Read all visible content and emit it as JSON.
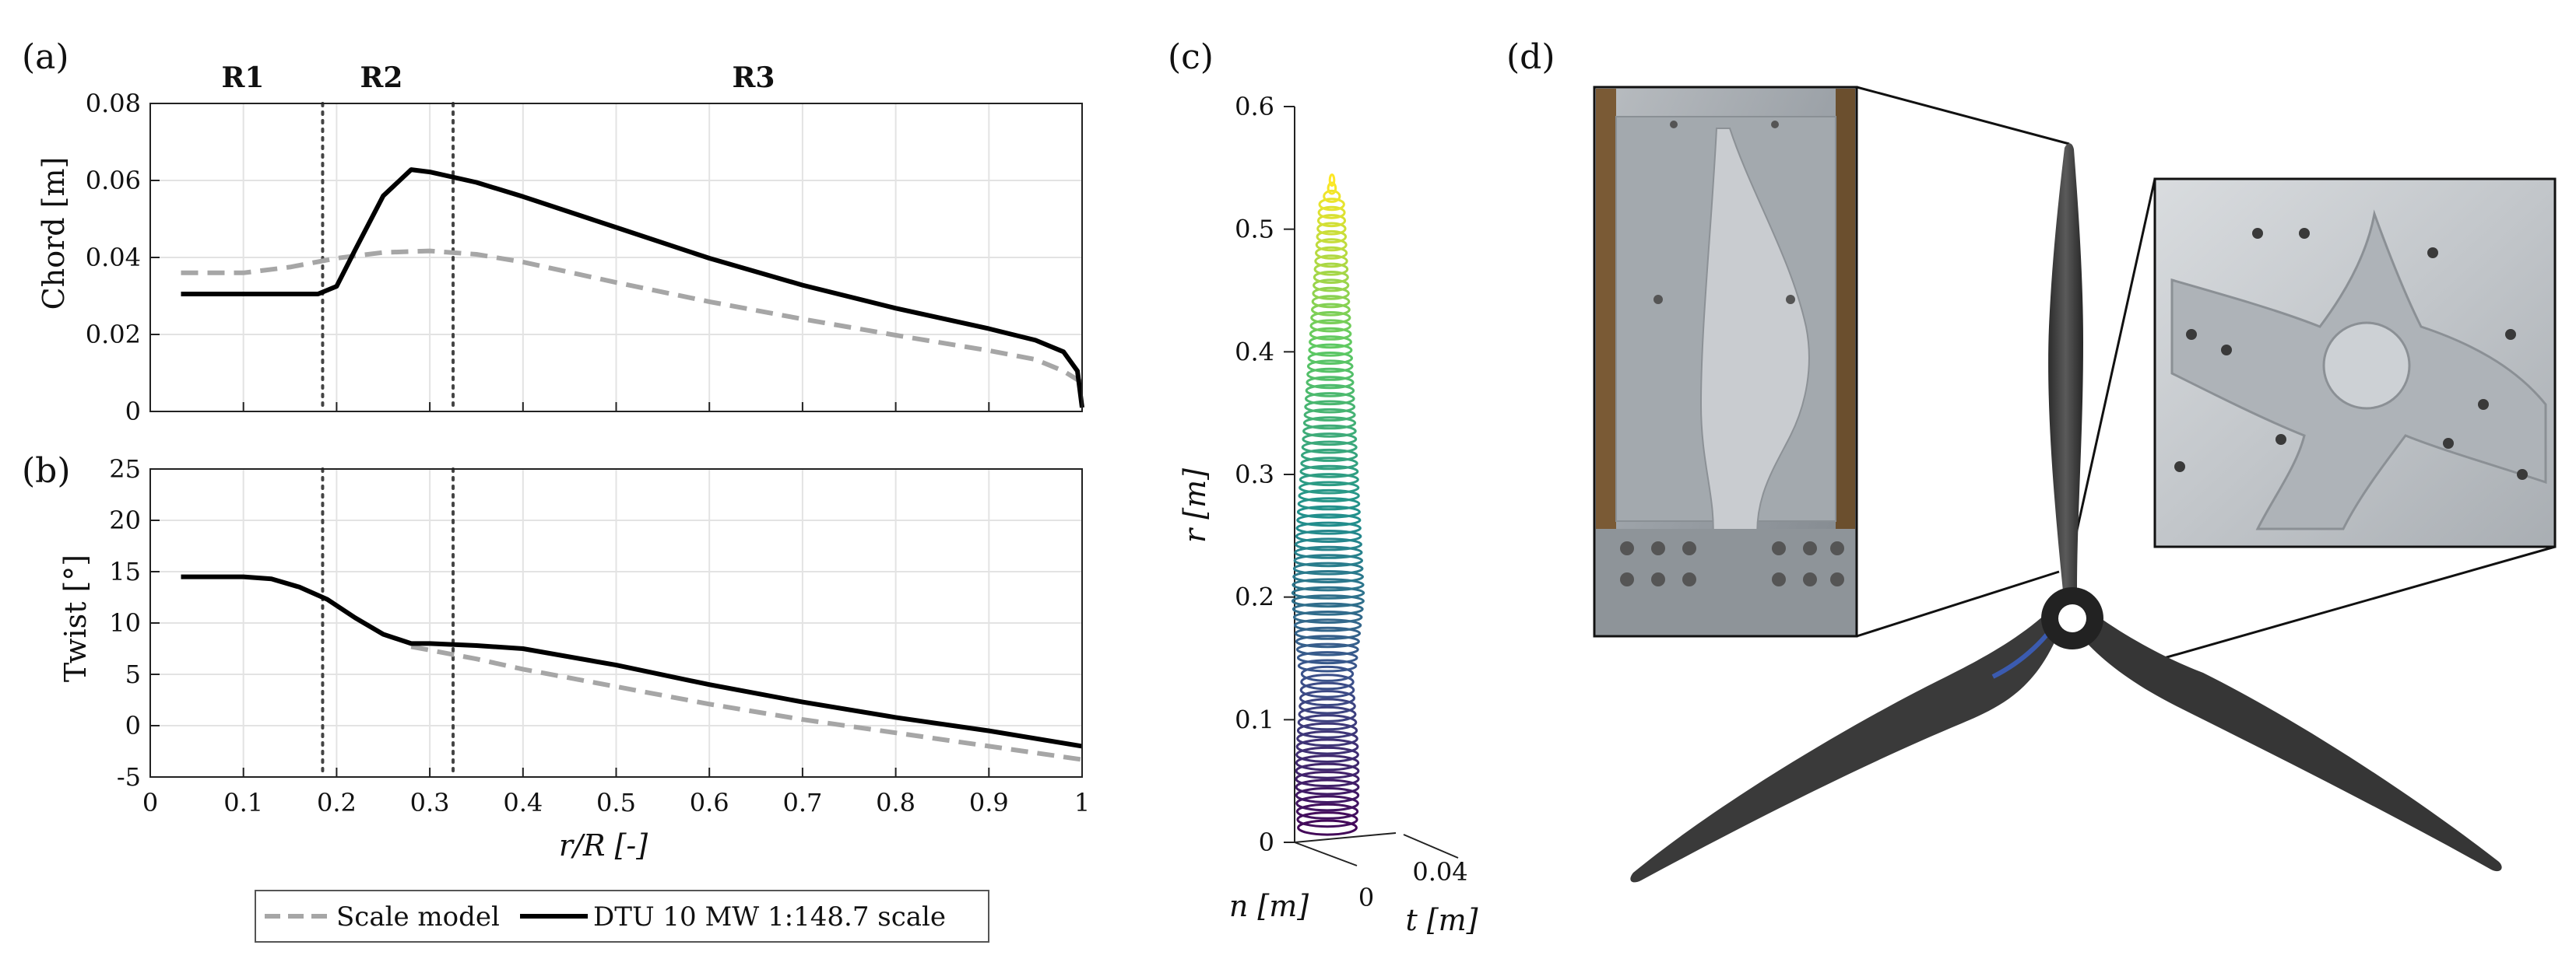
{
  "panels": {
    "a": "(a)",
    "b": "(b)",
    "c": "(c)",
    "d": "(d)"
  },
  "regions": [
    "R1",
    "R2",
    "R3"
  ],
  "region_bounds": [
    0.185,
    0.325
  ],
  "legend": {
    "scale_model": "Scale model",
    "dtu": "DTU 10 MW 1:148.7 scale"
  },
  "chart_data": [
    {
      "type": "line",
      "panel": "(a)",
      "xlabel": "",
      "ylabel": "Chord [m]",
      "xlim": [
        0,
        1
      ],
      "ylim": [
        0,
        0.08
      ],
      "yticks": [
        0,
        0.02,
        0.04,
        0.06,
        0.08
      ],
      "ytick_labels": [
        "0",
        "0.02",
        "0.04",
        "0.06",
        "0.08"
      ],
      "grid": true,
      "series": [
        {
          "name": "Scale model",
          "style": "dashed",
          "color": "#a6a6a6",
          "x": [
            0.033,
            0.1,
            0.15,
            0.2,
            0.25,
            0.3,
            0.35,
            0.4,
            0.5,
            0.6,
            0.7,
            0.8,
            0.9,
            0.95,
            0.98,
            1.0
          ],
          "y": [
            0.036,
            0.036,
            0.0375,
            0.0398,
            0.0413,
            0.0417,
            0.0408,
            0.0388,
            0.0335,
            0.0285,
            0.024,
            0.0198,
            0.0158,
            0.0135,
            0.0105,
            0.0075
          ]
        },
        {
          "name": "DTU 10 MW 1:148.7 scale",
          "style": "solid",
          "color": "#000000",
          "x": [
            0.033,
            0.1,
            0.18,
            0.2,
            0.22,
            0.25,
            0.28,
            0.3,
            0.35,
            0.4,
            0.5,
            0.6,
            0.7,
            0.8,
            0.9,
            0.95,
            0.98,
            0.995,
            1.0
          ],
          "y": [
            0.0305,
            0.0305,
            0.0305,
            0.0325,
            0.042,
            0.056,
            0.0628,
            0.0622,
            0.0595,
            0.0558,
            0.0478,
            0.0398,
            0.0328,
            0.0268,
            0.0215,
            0.0185,
            0.0155,
            0.0105,
            0.001
          ]
        }
      ]
    },
    {
      "type": "line",
      "panel": "(b)",
      "xlabel": "r/R [-]",
      "ylabel": "Twist [°]",
      "xlim": [
        0,
        1
      ],
      "ylim": [
        -5,
        25
      ],
      "xticks": [
        0,
        0.1,
        0.2,
        0.3,
        0.4,
        0.5,
        0.6,
        0.7,
        0.8,
        0.9,
        1
      ],
      "xtick_labels": [
        "0",
        "0.1",
        "0.2",
        "0.3",
        "0.4",
        "0.5",
        "0.6",
        "0.7",
        "0.8",
        "0.9",
        "1"
      ],
      "yticks": [
        -5,
        0,
        5,
        10,
        15,
        20,
        25
      ],
      "ytick_labels": [
        "-5",
        "0",
        "5",
        "10",
        "15",
        "20",
        "25"
      ],
      "grid": true,
      "series": [
        {
          "name": "Scale model",
          "style": "dashed",
          "color": "#a6a6a6",
          "x": [
            0.28,
            0.35,
            0.4,
            0.5,
            0.6,
            0.7,
            0.8,
            0.9,
            1.0
          ],
          "y": [
            7.7,
            6.5,
            5.5,
            3.8,
            2.1,
            0.6,
            -0.7,
            -2.0,
            -3.3
          ]
        },
        {
          "name": "DTU 10 MW 1:148.7 scale",
          "style": "solid",
          "color": "#000000",
          "x": [
            0.033,
            0.1,
            0.13,
            0.16,
            0.19,
            0.22,
            0.25,
            0.28,
            0.3,
            0.35,
            0.4,
            0.5,
            0.6,
            0.7,
            0.8,
            0.9,
            1.0
          ],
          "y": [
            14.5,
            14.5,
            14.3,
            13.5,
            12.3,
            10.5,
            8.9,
            8.0,
            8.0,
            7.8,
            7.5,
            5.9,
            4.0,
            2.3,
            0.8,
            -0.5,
            -2.0
          ]
        }
      ]
    },
    {
      "type": "scatter",
      "panel": "(c)",
      "xlabel": "t [m]",
      "ylabel": "r [m]",
      "zlabel": "n [m]",
      "ylim": [
        0,
        0.6
      ],
      "yticks": [
        0,
        0.1,
        0.2,
        0.3,
        0.4,
        0.5,
        0.6
      ],
      "ytick_labels": [
        "0",
        "0.1",
        "0.2",
        "0.3",
        "0.4",
        "0.5",
        "0.6"
      ],
      "t_tick_labels": [
        "0",
        "0.04"
      ],
      "colormap": [
        "#440154",
        "#3b528b",
        "#21918c",
        "#5ec962",
        "#fde725"
      ],
      "blade_tip_r": 0.54
    }
  ]
}
